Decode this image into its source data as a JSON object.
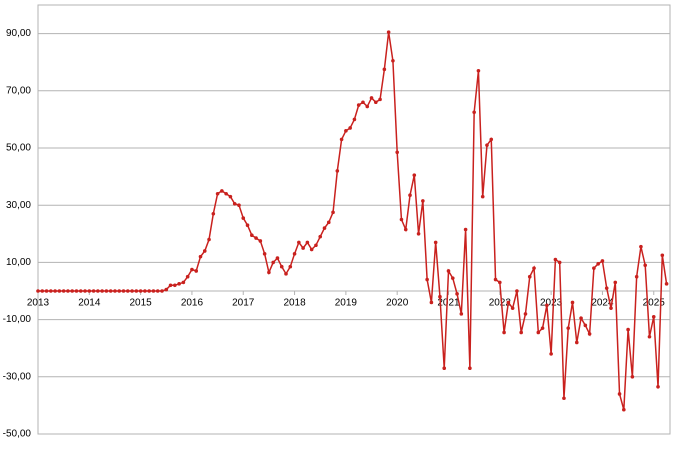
{
  "chart_data": {
    "type": "line",
    "categories": [
      "2013",
      null,
      null,
      null,
      null,
      null,
      null,
      null,
      null,
      null,
      null,
      null,
      "2014",
      null,
      null,
      null,
      null,
      null,
      null,
      null,
      null,
      null,
      null,
      null,
      "2015",
      null,
      null,
      null,
      null,
      null,
      null,
      null,
      null,
      null,
      null,
      null,
      "2016",
      null,
      null,
      null,
      null,
      null,
      null,
      null,
      null,
      null,
      null,
      null,
      "2017",
      null,
      null,
      null,
      null,
      null,
      null,
      null,
      null,
      null,
      null,
      null,
      "2018",
      null,
      null,
      null,
      null,
      null,
      null,
      null,
      null,
      null,
      null,
      null,
      "2019",
      null,
      null,
      null,
      null,
      null,
      null,
      null,
      null,
      null,
      null,
      null,
      "2020",
      null,
      null,
      null,
      null,
      null,
      null,
      null,
      null,
      null,
      null,
      null,
      "2021",
      null,
      null,
      null,
      null,
      null,
      null,
      null,
      null,
      null,
      null,
      null,
      "2022",
      null,
      null,
      null,
      null,
      null,
      null,
      null,
      null,
      null,
      null,
      null,
      "2023",
      null,
      null,
      null,
      null,
      null,
      null,
      null,
      null,
      null,
      null,
      null,
      "2024",
      null,
      null,
      null,
      null,
      null,
      null,
      null,
      null,
      null,
      null,
      null,
      "2025",
      null,
      null,
      null
    ],
    "values": [
      0,
      0,
      0,
      0,
      0,
      0,
      0,
      0,
      0,
      0,
      0,
      0,
      0,
      0,
      0,
      0,
      0,
      0,
      0,
      0,
      0,
      0,
      0,
      0,
      0,
      0,
      0,
      0,
      0,
      0,
      0.5,
      2,
      2,
      2.5,
      3,
      5,
      7.5,
      7,
      12,
      14,
      18,
      27,
      34,
      35,
      34,
      33,
      30.5,
      30,
      25.5,
      23,
      19.5,
      18.5,
      17.5,
      13,
      6.5,
      10,
      11.5,
      8.5,
      6,
      8.5,
      13,
      17,
      15,
      17,
      14.5,
      16,
      19,
      22,
      24,
      27.5,
      42,
      53,
      56,
      57,
      60,
      65,
      66,
      64.5,
      67.5,
      66,
      67,
      77.5,
      90.5,
      80.5,
      48.5,
      25,
      21.5,
      33.5,
      40.5,
      20,
      31.5,
      4,
      -4,
      17,
      -2,
      -27,
      7,
      4.5,
      -1,
      -8,
      21.5,
      -27,
      62.5,
      77,
      33,
      51,
      53,
      4,
      3,
      -14.5,
      -4,
      -6,
      0,
      -14.5,
      -8,
      5,
      8,
      -14.5,
      -13,
      -5,
      -22,
      11,
      10,
      -37.5,
      -13,
      -4,
      -18,
      -9.5,
      -12,
      -15,
      8,
      9.5,
      10.5,
      1,
      -6,
      3,
      -36,
      -41.5,
      -13.5,
      -30,
      5,
      15.5,
      9,
      -16,
      -9,
      -33.5,
      12.5,
      2.5
    ],
    "color": "#c9211e",
    "ylim": [
      -50,
      100
    ],
    "yticks": [
      {
        "value": -50,
        "label": "-50,00"
      },
      {
        "value": -30,
        "label": "-30,00"
      },
      {
        "value": -10,
        "label": "-10,00"
      },
      {
        "value": 10,
        "label": "10,00"
      },
      {
        "value": 30,
        "label": "30,00"
      },
      {
        "value": 50,
        "label": "50,00"
      },
      {
        "value": 70,
        "label": "70,00"
      },
      {
        "value": 90,
        "label": "90,00"
      }
    ],
    "grid": true
  }
}
